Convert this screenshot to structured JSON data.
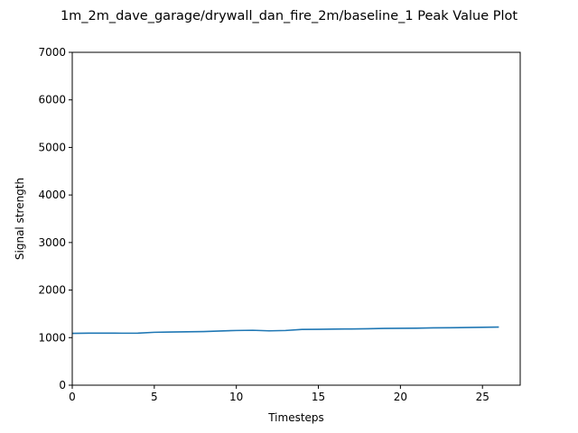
{
  "chart_data": {
    "type": "line",
    "title": "1m_2m_dave_garage/drywall_dan_fire_2m/baseline_1 Peak Value Plot",
    "xlabel": "Timesteps",
    "ylabel": "Signal strength",
    "xlim": [
      0,
      27.3
    ],
    "ylim": [
      0,
      7000
    ],
    "xticks": [
      0,
      5,
      10,
      15,
      20,
      25
    ],
    "yticks": [
      0,
      1000,
      2000,
      3000,
      4000,
      5000,
      6000,
      7000
    ],
    "xtick_labels": [
      "0",
      "5",
      "10",
      "15",
      "20",
      "25"
    ],
    "ytick_labels": [
      "0",
      "1000",
      "2000",
      "3000",
      "4000",
      "5000",
      "6000",
      "7000"
    ],
    "grid": false,
    "legend": "none",
    "series": [
      {
        "color": "#1f77b4",
        "x": [
          0,
          1,
          2,
          3,
          4,
          5,
          6,
          7,
          8,
          9,
          10,
          11,
          12,
          13,
          14,
          15,
          16,
          17,
          18,
          19,
          20,
          21,
          22,
          23,
          24,
          25,
          26
        ],
        "y": [
          1090,
          1095,
          1095,
          1093,
          1095,
          1112,
          1118,
          1123,
          1128,
          1140,
          1150,
          1155,
          1143,
          1150,
          1172,
          1175,
          1180,
          1183,
          1187,
          1193,
          1196,
          1198,
          1205,
          1208,
          1212,
          1218,
          1223
        ]
      }
    ]
  }
}
